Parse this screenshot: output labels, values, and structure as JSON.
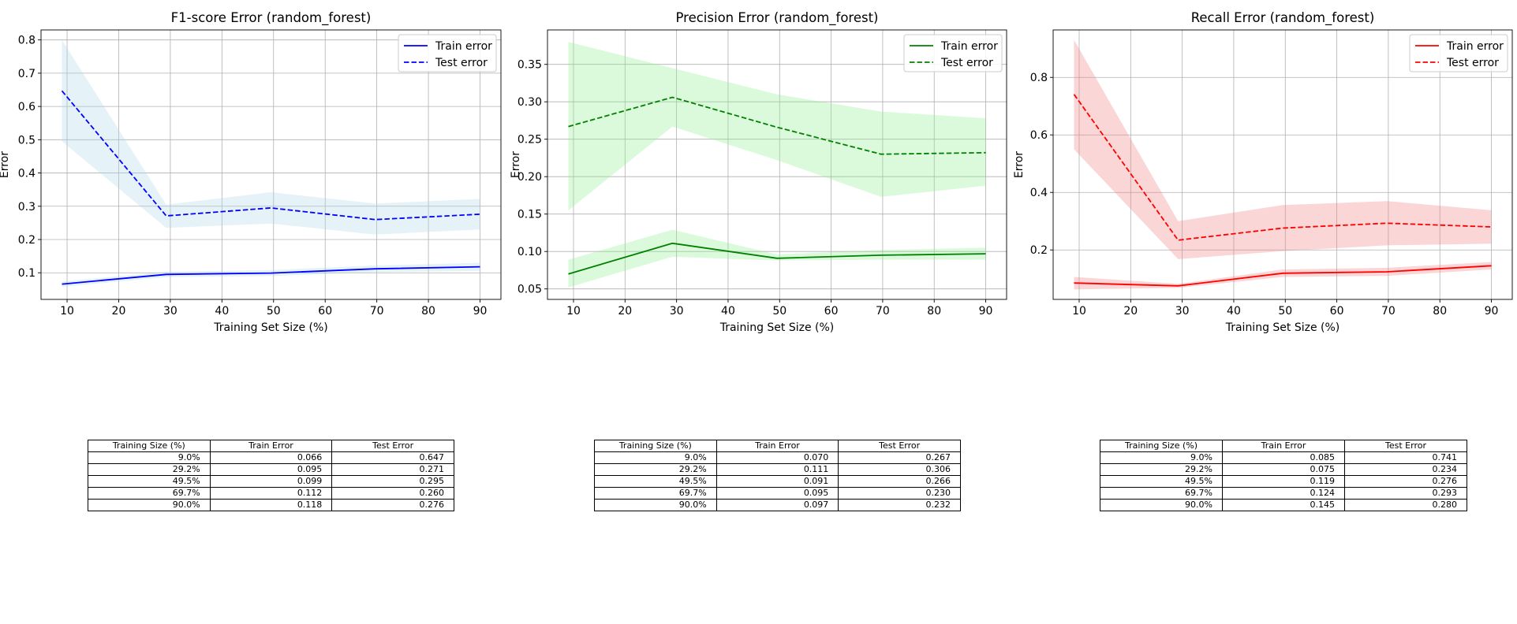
{
  "chart_data": [
    {
      "type": "line",
      "title": "F1-score Error (random_forest)",
      "xlabel": "Training Set Size (%)",
      "ylabel": "Error",
      "color": "#0000ff",
      "band_color": "#add8e6",
      "xlim": [
        4.95,
        94.05
      ],
      "ylim": [
        0.02,
        0.83
      ],
      "xticks": [
        10,
        20,
        30,
        40,
        50,
        60,
        70,
        80,
        90
      ],
      "yticks": [
        0.1,
        0.2,
        0.3,
        0.4,
        0.5,
        0.6,
        0.7,
        0.8
      ],
      "ytick_labels": [
        "0.1",
        "0.2",
        "0.3",
        "0.4",
        "0.5",
        "0.6",
        "0.7",
        "0.8"
      ],
      "grid": true,
      "legend_position": "top-right",
      "x": [
        9.0,
        29.2,
        49.5,
        69.7,
        90.0
      ],
      "series": [
        {
          "name": "Train error",
          "style": "solid",
          "values": [
            0.066,
            0.095,
            0.099,
            0.112,
            0.118
          ],
          "band_low": [
            0.058,
            0.087,
            0.09,
            0.102,
            0.106
          ],
          "band_high": [
            0.074,
            0.103,
            0.108,
            0.122,
            0.13
          ]
        },
        {
          "name": "Test error",
          "style": "dashed",
          "values": [
            0.647,
            0.271,
            0.295,
            0.26,
            0.276
          ],
          "band_low": [
            0.495,
            0.235,
            0.248,
            0.215,
            0.23
          ],
          "band_high": [
            0.8,
            0.305,
            0.342,
            0.308,
            0.322
          ]
        }
      ],
      "table": {
        "headers": [
          "Training Size (%)",
          "Train Error",
          "Test Error"
        ],
        "rows": [
          [
            "9.0%",
            "0.066",
            "0.647"
          ],
          [
            "29.2%",
            "0.095",
            "0.271"
          ],
          [
            "49.5%",
            "0.099",
            "0.295"
          ],
          [
            "69.7%",
            "0.112",
            "0.260"
          ],
          [
            "90.0%",
            "0.118",
            "0.276"
          ]
        ]
      }
    },
    {
      "type": "line",
      "title": "Precision Error (random_forest)",
      "xlabel": "Training Set Size (%)",
      "ylabel": "Error",
      "color": "#008000",
      "band_color": "#90ee90",
      "xlim": [
        4.95,
        94.05
      ],
      "ylim": [
        0.036,
        0.396
      ],
      "xticks": [
        10,
        20,
        30,
        40,
        50,
        60,
        70,
        80,
        90
      ],
      "yticks": [
        0.05,
        0.1,
        0.15,
        0.2,
        0.25,
        0.3,
        0.35
      ],
      "ytick_labels": [
        "0.05",
        "0.10",
        "0.15",
        "0.20",
        "0.25",
        "0.30",
        "0.35"
      ],
      "grid": true,
      "legend_position": "top-right",
      "x": [
        9.0,
        29.2,
        49.5,
        69.7,
        90.0
      ],
      "series": [
        {
          "name": "Train error",
          "style": "solid",
          "values": [
            0.07,
            0.111,
            0.091,
            0.095,
            0.097
          ],
          "band_low": [
            0.052,
            0.093,
            0.088,
            0.089,
            0.089
          ],
          "band_high": [
            0.089,
            0.129,
            0.096,
            0.102,
            0.105
          ]
        },
        {
          "name": "Test error",
          "style": "dashed",
          "values": [
            0.267,
            0.306,
            0.266,
            0.23,
            0.232
          ],
          "band_low": [
            0.155,
            0.267,
            0.222,
            0.173,
            0.188
          ],
          "band_high": [
            0.38,
            0.345,
            0.31,
            0.287,
            0.278
          ]
        }
      ],
      "table": {
        "headers": [
          "Training Size (%)",
          "Train Error",
          "Test Error"
        ],
        "rows": [
          [
            "9.0%",
            "0.070",
            "0.267"
          ],
          [
            "29.2%",
            "0.111",
            "0.306"
          ],
          [
            "49.5%",
            "0.091",
            "0.266"
          ],
          [
            "69.7%",
            "0.095",
            "0.230"
          ],
          [
            "90.0%",
            "0.097",
            "0.232"
          ]
        ]
      }
    },
    {
      "type": "line",
      "title": "Recall Error (random_forest)",
      "xlabel": "Training Set Size (%)",
      "ylabel": "Error",
      "color": "#ff0000",
      "band_color": "#f08080",
      "xlim": [
        4.95,
        94.05
      ],
      "ylim": [
        0.028,
        0.965
      ],
      "xticks": [
        10,
        20,
        30,
        40,
        50,
        60,
        70,
        80,
        90
      ],
      "yticks": [
        0.2,
        0.4,
        0.6,
        0.8
      ],
      "ytick_labels": [
        "0.2",
        "0.4",
        "0.6",
        "0.8"
      ],
      "grid": true,
      "legend_position": "top-right",
      "x": [
        9.0,
        29.2,
        49.5,
        69.7,
        90.0
      ],
      "series": [
        {
          "name": "Train error",
          "style": "solid",
          "values": [
            0.085,
            0.075,
            0.119,
            0.124,
            0.145
          ],
          "band_low": [
            0.063,
            0.068,
            0.106,
            0.11,
            0.132
          ],
          "band_high": [
            0.106,
            0.082,
            0.132,
            0.138,
            0.158
          ]
        },
        {
          "name": "Test error",
          "style": "dashed",
          "values": [
            0.741,
            0.234,
            0.276,
            0.293,
            0.28
          ],
          "band_low": [
            0.55,
            0.168,
            0.196,
            0.216,
            0.222
          ],
          "band_high": [
            0.93,
            0.3,
            0.356,
            0.37,
            0.338
          ]
        }
      ],
      "table": {
        "headers": [
          "Training Size (%)",
          "Train Error",
          "Test Error"
        ],
        "rows": [
          [
            "9.0%",
            "0.085",
            "0.741"
          ],
          [
            "29.2%",
            "0.075",
            "0.234"
          ],
          [
            "49.5%",
            "0.119",
            "0.276"
          ],
          [
            "69.7%",
            "0.124",
            "0.293"
          ],
          [
            "90.0%",
            "0.145",
            "0.280"
          ]
        ]
      }
    }
  ]
}
